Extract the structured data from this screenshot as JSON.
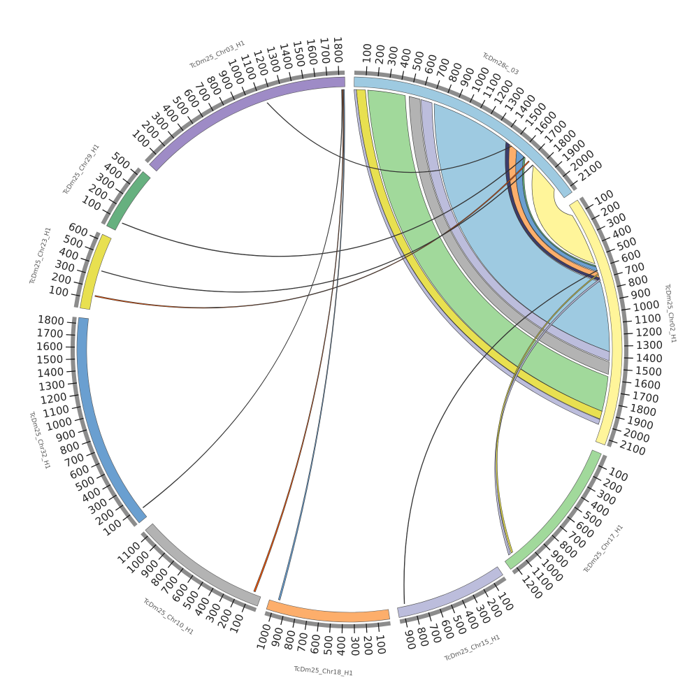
{
  "chart_data": {
    "type": "chord",
    "segments": [
      {
        "name": "TcDm28c_03",
        "color": "#9ecae1",
        "length": 2150,
        "ticks": [
          100,
          200,
          300,
          400,
          500,
          600,
          700,
          800,
          900,
          1000,
          1100,
          1200,
          1300,
          1400,
          1500,
          1600,
          1700,
          1800,
          1900,
          2000,
          2100
        ]
      },
      {
        "name": "TcDm25_Chr02_H1",
        "color": "#fff59a",
        "length": 2150,
        "ticks": [
          100,
          200,
          300,
          400,
          500,
          600,
          700,
          800,
          900,
          1000,
          1100,
          1200,
          1300,
          1400,
          1500,
          1600,
          1700,
          1800,
          1900,
          2000,
          2100
        ]
      },
      {
        "name": "TcDm25_Chr17_H1",
        "color": "#a1d99b",
        "length": 1250,
        "ticks": [
          100,
          200,
          300,
          400,
          500,
          600,
          700,
          800,
          900,
          1000,
          1100,
          1200
        ]
      },
      {
        "name": "TcDm25_Chr15_H1",
        "color": "#bcbddc",
        "length": 950,
        "ticks": [
          100,
          200,
          300,
          400,
          500,
          600,
          700,
          800,
          900
        ]
      },
      {
        "name": "TcDm25_Chr18_H1",
        "color": "#fdae6b",
        "length": 1050,
        "ticks": [
          100,
          200,
          300,
          400,
          500,
          600,
          700,
          800,
          900,
          1000
        ]
      },
      {
        "name": "TcDm25_Chr10_H1",
        "color": "#b3b3b3",
        "length": 1150,
        "ticks": [
          100,
          200,
          300,
          400,
          500,
          600,
          700,
          800,
          900,
          1000,
          1100
        ]
      },
      {
        "name": "TcDm25_Chr32_H1",
        "color": "#6a9fd0",
        "length": 1850,
        "ticks": [
          100,
          200,
          300,
          400,
          500,
          600,
          700,
          800,
          900,
          1000,
          1100,
          1200,
          1300,
          1400,
          1500,
          1600,
          1700,
          1800
        ]
      },
      {
        "name": "TcDm25_Chr23_H1",
        "color": "#e8e050",
        "length": 650,
        "ticks": [
          100,
          200,
          300,
          400,
          500,
          600
        ]
      },
      {
        "name": "TcDm25_Chr29_H1",
        "color": "#66b07f",
        "length": 550,
        "ticks": [
          100,
          200,
          300,
          400,
          500
        ]
      },
      {
        "name": "TcDm25_Chr03_H1",
        "color": "#9e8bc6",
        "length": 1850,
        "ticks": [
          100,
          200,
          300,
          400,
          500,
          600,
          700,
          800,
          900,
          1000,
          1100,
          1200,
          1300,
          1400,
          1500,
          1600,
          1700,
          1800
        ]
      }
    ],
    "links": [
      {
        "source": "TcDm28c_03",
        "source_start": 720,
        "source_end": 1440,
        "target": "TcDm25_Chr02_H1",
        "target_start": 730,
        "target_end": 1350,
        "color": "#9ecae1"
      },
      {
        "source": "TcDm28c_03",
        "source_start": 120,
        "source_end": 455,
        "target": "TcDm25_Chr02_H1",
        "target_start": 1570,
        "target_end": 1880,
        "color": "#a1d99b"
      },
      {
        "source": "TcDm28c_03",
        "source_start": 490,
        "source_end": 590,
        "target": "TcDm25_Chr02_H1",
        "target_start": 1440,
        "target_end": 1550,
        "color": "#b3b3b3"
      },
      {
        "source": "TcDm28c_03",
        "source_start": 600,
        "source_end": 700,
        "target": "TcDm25_Chr02_H1",
        "target_start": 1350,
        "target_end": 1430,
        "color": "#bcbddc"
      },
      {
        "source": "TcDm28c_03",
        "source_start": 20,
        "source_end": 100,
        "target": "TcDm25_Chr02_H1",
        "target_start": 1880,
        "target_end": 1950,
        "color": "#e8e050"
      },
      {
        "source": "TcDm28c_03",
        "source_start": 0,
        "source_end": 20,
        "target": "TcDm25_Chr02_H1",
        "target_start": 1955,
        "target_end": 2000,
        "color": "#bcbddc"
      },
      {
        "source": "TcDm28c_03",
        "source_start": 1440,
        "source_end": 1480,
        "target": "TcDm25_Chr02_H1",
        "target_start": 690,
        "target_end": 720,
        "color": "#3d3d6b"
      },
      {
        "source": "TcDm28c_03",
        "source_start": 1480,
        "source_end": 1560,
        "target": "TcDm25_Chr02_H1",
        "target_start": 640,
        "target_end": 690,
        "color": "#fdae6b"
      },
      {
        "source": "TcDm28c_03",
        "source_start": 1560,
        "source_end": 1640,
        "target": "TcDm25_Chr02_H1",
        "target_start": 590,
        "target_end": 630,
        "color": "#6a9fd0"
      },
      {
        "source": "TcDm28c_03",
        "source_start": 1640,
        "source_end": 1660,
        "target": "TcDm25_Chr02_H1",
        "target_start": 575,
        "target_end": 588,
        "color": "#66b07f"
      },
      {
        "source": "TcDm28c_03",
        "source_start": 1760,
        "source_end": 2040,
        "target": "TcDm25_Chr02_H1",
        "target_start": 90,
        "target_end": 560,
        "color": "#fff59a"
      },
      {
        "source": "TcDm25_Chr03_H1",
        "source_start": 1150,
        "source_end": 1155,
        "target": "TcDm28c_03",
        "target_start": 1500,
        "target_end": 1505,
        "color": "#333333"
      },
      {
        "source": "TcDm25_Chr29_H1",
        "source_start": 80,
        "source_end": 85,
        "target": "TcDm28c_03",
        "target_start": 1650,
        "target_end": 1655,
        "color": "#333333"
      },
      {
        "source": "TcDm25_Chr23_H1",
        "source_start": 120,
        "source_end": 130,
        "target": "TcDm28c_03",
        "target_start": 1700,
        "target_end": 1710,
        "color": "#e6550d"
      },
      {
        "source": "TcDm25_Chr23_H1",
        "source_start": 350,
        "source_end": 355,
        "target": "TcDm28c_03",
        "target_start": 1750,
        "target_end": 1755,
        "color": "#333333"
      },
      {
        "source": "TcDm25_Chr32_H1",
        "source_start": 80,
        "source_end": 85,
        "target": "TcDm25_Chr03_H1",
        "target_start": 1820,
        "target_end": 1825,
        "color": "#333333"
      },
      {
        "source": "TcDm25_Chr10_H1",
        "source_start": 60,
        "source_end": 75,
        "target": "TcDm25_Chr03_H1",
        "target_start": 1828,
        "target_end": 1835,
        "color": "#e6550d"
      },
      {
        "source": "TcDm25_Chr18_H1",
        "source_start": 960,
        "source_end": 975,
        "target": "TcDm25_Chr03_H1",
        "target_start": 1837,
        "target_end": 1845,
        "color": "#6a9fd0"
      },
      {
        "source": "TcDm25_Chr15_H1",
        "source_start": 880,
        "source_end": 885,
        "target": "TcDm25_Chr02_H1",
        "target_start": 620,
        "target_end": 625,
        "color": "#333333"
      },
      {
        "source": "TcDm25_Chr17_H1",
        "source_start": 1170,
        "source_end": 1190,
        "target": "TcDm25_Chr02_H1",
        "target_start": 700,
        "target_end": 715,
        "color": "#bcbddc"
      },
      {
        "source": "TcDm25_Chr17_H1",
        "source_start": 1145,
        "source_end": 1160,
        "target": "TcDm25_Chr02_H1",
        "target_start": 650,
        "target_end": 660,
        "color": "#e8e050"
      }
    ]
  }
}
